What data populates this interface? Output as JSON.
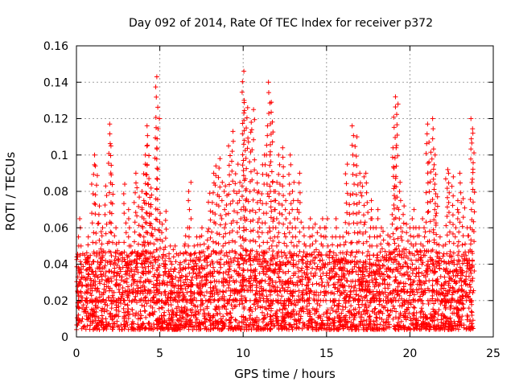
{
  "chart_data": {
    "type": "scatter",
    "title": "Day 092 of 2014, Rate Of TEC Index for receiver p372",
    "xlabel": "GPS time / hours",
    "ylabel": "ROTI / TECUs",
    "xlim": [
      0,
      25
    ],
    "ylim": [
      0,
      0.16
    ],
    "xticks": [
      0,
      5,
      10,
      15,
      20,
      25
    ],
    "xtick_labels": [
      "0",
      "5",
      "10",
      "15",
      "20",
      "25"
    ],
    "yticks": [
      0,
      0.02,
      0.04,
      0.06,
      0.08,
      0.1,
      0.12,
      0.14,
      0.16
    ],
    "ytick_labels": [
      "0",
      "0.02",
      "0.04",
      "0.06",
      "0.08",
      "0.1",
      "0.12",
      "0.14",
      "0.16"
    ],
    "grid": true,
    "marker": "+",
    "color": "#ff0000",
    "series": [
      {
        "name": "ROTI",
        "x": [
          0.1,
          0.2,
          0.3,
          0.5,
          0.7,
          0.9,
          1.0,
          1.2,
          1.4,
          1.6,
          1.8,
          2.0,
          2.1,
          2.3,
          2.5,
          2.7,
          2.9,
          3.1,
          3.3,
          3.5,
          3.7,
          3.9,
          4.0,
          4.1,
          4.2,
          4.3,
          4.4,
          4.5,
          4.6,
          4.8,
          4.9,
          5.0,
          5.2,
          5.4,
          5.6,
          5.8,
          6.0,
          6.2,
          6.4,
          6.6,
          6.8,
          7.0,
          7.2,
          7.4,
          7.6,
          7.8,
          8.0,
          8.2,
          8.4,
          8.6,
          8.8,
          9.0,
          9.2,
          9.4,
          9.6,
          9.8,
          10.0,
          10.1,
          10.2,
          10.4,
          10.6,
          10.8,
          11.0,
          11.2,
          11.4,
          11.6,
          11.7,
          11.8,
          12.0,
          12.2,
          12.4,
          12.6,
          12.8,
          13.0,
          13.2,
          13.4,
          13.6,
          13.8,
          14.0,
          14.2,
          14.4,
          14.6,
          14.8,
          15.0,
          15.2,
          15.4,
          15.6,
          15.8,
          16.0,
          16.2,
          16.4,
          16.6,
          16.8,
          17.0,
          17.2,
          17.4,
          17.6,
          17.8,
          18.0,
          18.2,
          18.4,
          18.6,
          18.8,
          19.0,
          19.1,
          19.2,
          19.4,
          19.6,
          19.8,
          20.0,
          20.2,
          20.4,
          20.6,
          20.8,
          21.0,
          21.2,
          21.4,
          21.5,
          21.6,
          21.8,
          22.0,
          22.2,
          22.4,
          22.6,
          22.8,
          23.0,
          23.2,
          23.4,
          23.6,
          23.7,
          23.8
        ],
        "y": [
          0.033,
          0.065,
          0.05,
          0.045,
          0.055,
          0.04,
          0.1,
          0.094,
          0.072,
          0.06,
          0.083,
          0.117,
          0.105,
          0.06,
          0.052,
          0.046,
          0.084,
          0.07,
          0.05,
          0.09,
          0.082,
          0.071,
          0.08,
          0.095,
          0.116,
          0.105,
          0.087,
          0.078,
          0.06,
          0.143,
          0.12,
          0.068,
          0.062,
          0.069,
          0.05,
          0.048,
          0.05,
          0.045,
          0.05,
          0.06,
          0.085,
          0.05,
          0.055,
          0.055,
          0.06,
          0.058,
          0.079,
          0.09,
          0.094,
          0.098,
          0.085,
          0.083,
          0.105,
          0.113,
          0.095,
          0.085,
          0.146,
          0.13,
          0.126,
          0.118,
          0.125,
          0.09,
          0.08,
          0.1,
          0.116,
          0.14,
          0.129,
          0.085,
          0.085,
          0.1,
          0.104,
          0.075,
          0.1,
          0.085,
          0.075,
          0.09,
          0.06,
          0.05,
          0.065,
          0.06,
          0.062,
          0.06,
          0.065,
          0.065,
          0.045,
          0.055,
          0.065,
          0.055,
          0.055,
          0.095,
          0.078,
          0.116,
          0.11,
          0.09,
          0.088,
          0.09,
          0.075,
          0.065,
          0.07,
          0.06,
          0.058,
          0.056,
          0.055,
          0.104,
          0.132,
          0.128,
          0.085,
          0.072,
          0.062,
          0.06,
          0.07,
          0.06,
          0.06,
          0.065,
          0.117,
          0.107,
          0.12,
          0.1,
          0.077,
          0.055,
          0.05,
          0.092,
          0.09,
          0.088,
          0.075,
          0.09,
          0.076,
          0.06,
          0.06,
          0.12,
          0.112
        ]
      }
    ],
    "background_band": {
      "description": "dense baseline cluster of markers",
      "y_range": [
        0.004,
        0.035
      ]
    }
  }
}
